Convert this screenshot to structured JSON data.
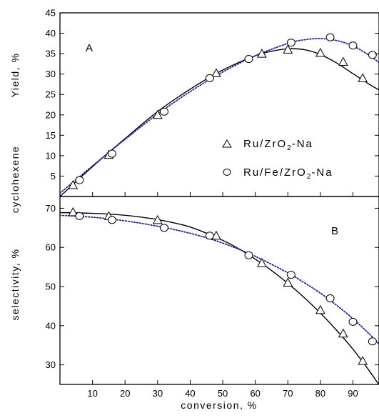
{
  "chart_data": [
    {
      "type": "scatter",
      "panel_label": "A",
      "xlabel": "",
      "ylabel_parts": [
        "cyclohexene",
        "Yield, %"
      ],
      "xlim": [
        0,
        98
      ],
      "ylim": [
        0,
        45
      ],
      "yticks": [
        5,
        10,
        15,
        20,
        25,
        30,
        35,
        40,
        45
      ],
      "legend": {
        "position": "center-right",
        "entries": [
          {
            "marker": "triangle",
            "prefix": "Ru/ZrO",
            "sub": "2",
            "suffix": "-Na"
          },
          {
            "marker": "circle",
            "prefix": "Ru/Fe/ZrO",
            "sub": "2",
            "suffix": "-Na"
          }
        ]
      },
      "series": [
        {
          "name": "Ru/ZrO2-Na",
          "marker": "triangle",
          "x": [
            4,
            15,
            30,
            48,
            62,
            70,
            80,
            87,
            93
          ],
          "y": [
            2.8,
            10.2,
            20,
            30.2,
            35,
            36,
            35.2,
            33,
            29
          ],
          "fit_line": "solid",
          "fit_color": "#000000",
          "fit_x": [
            0,
            10,
            20,
            30,
            40,
            50,
            60,
            65,
            70,
            75,
            80,
            85,
            90,
            95,
            98
          ],
          "fit_y": [
            0,
            7.3,
            14.2,
            20.8,
            26.3,
            31.0,
            34.5,
            35.6,
            36.2,
            36.0,
            34.8,
            32.7,
            30.1,
            27.5,
            26.1
          ]
        },
        {
          "name": "Ru/Fe/ZrO2-Na",
          "marker": "circle",
          "x": [
            6,
            16,
            32,
            46,
            58,
            71,
            83,
            90,
            96
          ],
          "y": [
            4,
            10.5,
            20.8,
            29,
            33.7,
            37.7,
            39,
            37,
            34.7
          ],
          "fit_line": "dotted",
          "fit_color": "#1f1fa8",
          "fit_x": [
            0,
            10,
            20,
            30,
            40,
            50,
            60,
            70,
            75,
            80,
            85,
            90,
            95,
            98
          ],
          "fit_y": [
            0.8,
            7.5,
            14.0,
            20.2,
            25.7,
            30.5,
            34.5,
            37.5,
            38.4,
            38.7,
            38.2,
            36.9,
            34.6,
            32.8
          ]
        }
      ]
    },
    {
      "type": "scatter",
      "panel_label": "B",
      "xlabel": "conversion, %",
      "ylabel": "selectivity, %",
      "xlim": [
        0,
        98
      ],
      "ylim": [
        25,
        73
      ],
      "xticks": [
        10,
        20,
        30,
        40,
        50,
        60,
        70,
        80,
        90
      ],
      "yticks": [
        30,
        40,
        50,
        60,
        70
      ],
      "series": [
        {
          "name": "Ru/ZrO2-Na",
          "marker": "triangle",
          "x": [
            4,
            15,
            30,
            48,
            62,
            70,
            80,
            87,
            93
          ],
          "y": [
            69,
            68,
            67,
            63,
            56,
            51,
            44,
            38,
            31
          ],
          "fit_line": "solid",
          "fit_color": "#000000",
          "fit_x": [
            0,
            10,
            20,
            30,
            40,
            50,
            55,
            60,
            65,
            70,
            75,
            80,
            85,
            90,
            95,
            98
          ],
          "fit_y": [
            68.9,
            68.7,
            68.2,
            67.1,
            65.2,
            61.8,
            59.6,
            57.0,
            54.1,
            50.8,
            47.2,
            43.2,
            38.8,
            34.0,
            28.5,
            24.9
          ]
        },
        {
          "name": "Ru/Fe/ZrO2-Na",
          "marker": "circle",
          "x": [
            6,
            16,
            32,
            46,
            58,
            71,
            83,
            90,
            96
          ],
          "y": [
            68,
            67,
            65,
            63,
            58,
            53,
            47,
            41,
            36
          ],
          "fit_line": "dotted",
          "fit_color": "#1f1fa8",
          "fit_x": [
            0,
            10,
            20,
            30,
            40,
            50,
            60,
            70,
            75,
            80,
            85,
            90,
            95,
            98
          ],
          "fit_y": [
            68.2,
            67.7,
            66.8,
            65.4,
            63.6,
            61.1,
            57.7,
            53.5,
            51.0,
            48.3,
            45.2,
            41.8,
            37.9,
            35.3
          ]
        }
      ]
    }
  ]
}
